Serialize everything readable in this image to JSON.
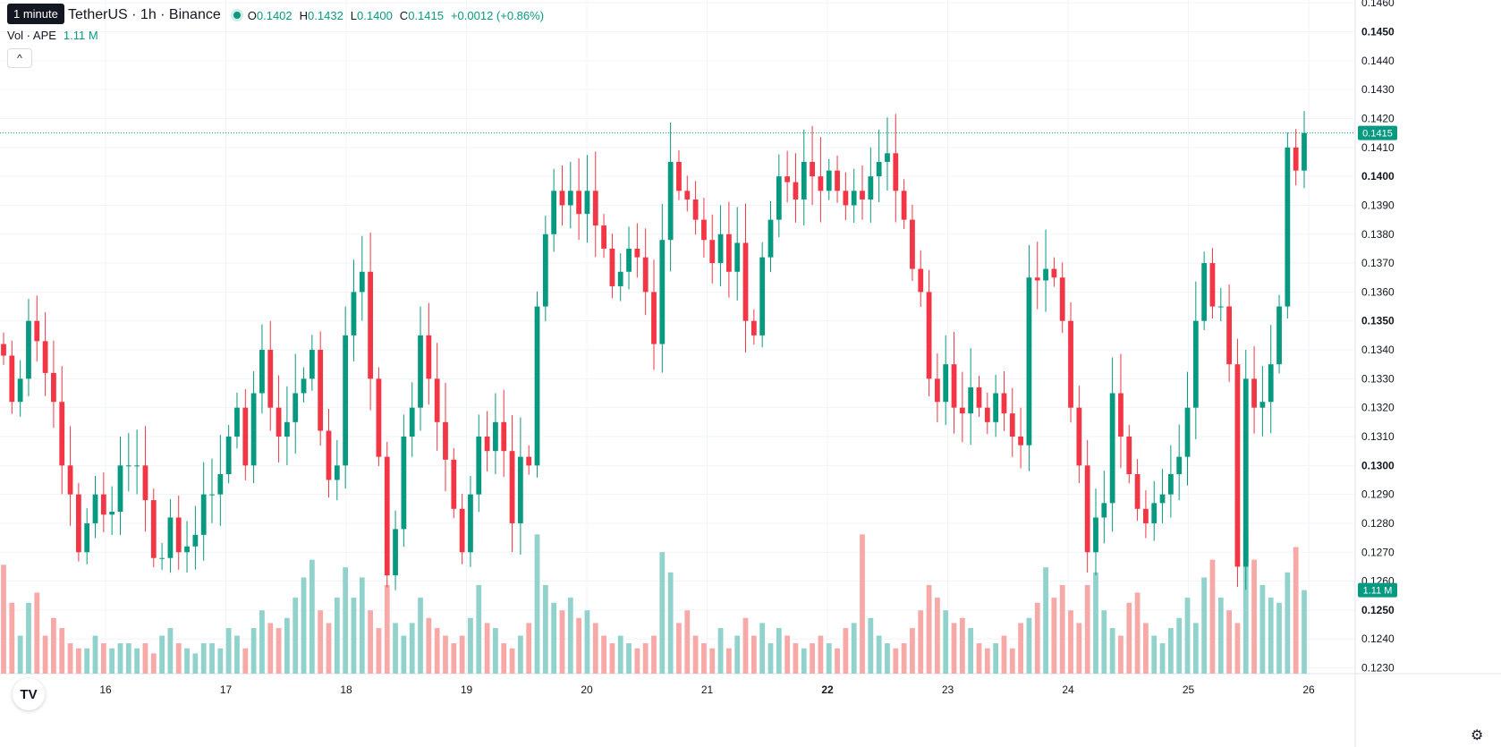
{
  "header": {
    "tooltip": "1 minute",
    "symbol_text": "TetherUS · 1h · Binance",
    "ohlc": {
      "o_label": "O",
      "o": "0.1402",
      "h_label": "H",
      "h": "0.1432",
      "l_label": "L",
      "l": "0.1400",
      "c_label": "C",
      "c": "0.1415"
    },
    "change": "+0.0012 (+0.86%)",
    "volume_label": "Vol · APE",
    "volume_value": "1.11 M",
    "collapse_glyph": "^"
  },
  "logo": "TV",
  "settings_icon": "gear-icon",
  "colors": {
    "up": "#089981",
    "down": "#f23645",
    "up_vol": "#92d2cc",
    "down_vol": "#f7a9a7",
    "grid": "#f0f3fa"
  },
  "chart_data": {
    "type": "candlestick",
    "x_ticks": [
      "16",
      "17",
      "18",
      "19",
      "20",
      "21",
      "22",
      "23",
      "24",
      "25",
      "26"
    ],
    "bold_x_ticks": [
      "22"
    ],
    "y_ticks": [
      "0.1230",
      "0.1240",
      "0.1250",
      "0.1260",
      "0.1270",
      "0.1280",
      "0.1290",
      "0.1300",
      "0.1310",
      "0.1320",
      "0.1330",
      "0.1340",
      "0.1350",
      "0.1360",
      "0.1370",
      "0.1380",
      "0.1390",
      "0.1400",
      "0.1410",
      "0.1420",
      "0.1430",
      "0.1440",
      "0.1450",
      "0.1460"
    ],
    "bold_y_ticks": [
      "0.1250",
      "0.1300",
      "0.1350",
      "0.1400",
      "0.1450"
    ],
    "ylim": [
      0.1228,
      0.1461
    ],
    "last_price_label": "0.1415",
    "last_price": 0.1415,
    "volume_label_badge": "1.11 M",
    "volume_last_fraction": 0.33,
    "close_path": [
      0.1338,
      0.1322,
      0.133,
      0.135,
      0.1343,
      0.1332,
      0.1322,
      0.13,
      0.129,
      0.127,
      0.128,
      0.129,
      0.1283,
      0.1284,
      0.13,
      0.13,
      0.13,
      0.1288,
      0.1268,
      0.1268,
      0.1282,
      0.127,
      0.1272,
      0.1276,
      0.129,
      0.129,
      0.1297,
      0.131,
      0.132,
      0.13,
      0.1325,
      0.134,
      0.132,
      0.131,
      0.1315,
      0.1325,
      0.133,
      0.134,
      0.1312,
      0.1295,
      0.13,
      0.1345,
      0.136,
      0.1367,
      0.133,
      0.1303,
      0.1262,
      0.1278,
      0.131,
      0.132,
      0.1345,
      0.133,
      0.1315,
      0.1302,
      0.1285,
      0.127,
      0.129,
      0.131,
      0.1305,
      0.1315,
      0.1305,
      0.128,
      0.1303,
      0.13,
      0.1355,
      0.138,
      0.1395,
      0.139,
      0.1395,
      0.1387,
      0.1395,
      0.1383,
      0.1375,
      0.1362,
      0.1367,
      0.1375,
      0.1372,
      0.136,
      0.1342,
      0.1378,
      0.1405,
      0.1395,
      0.1392,
      0.1385,
      0.1378,
      0.137,
      0.138,
      0.1367,
      0.1377,
      0.135,
      0.1345,
      0.1372,
      0.1385,
      0.14,
      0.1398,
      0.1392,
      0.1405,
      0.14,
      0.1395,
      0.1402,
      0.1395,
      0.139,
      0.1395,
      0.1392,
      0.14,
      0.1405,
      0.1408,
      0.1395,
      0.1385,
      0.1368,
      0.136,
      0.133,
      0.1322,
      0.1335,
      0.132,
      0.1318,
      0.1327,
      0.132,
      0.1315,
      0.1325,
      0.1318,
      0.131,
      0.1307,
      0.1365,
      0.1364,
      0.1368,
      0.1365,
      0.135,
      0.132,
      0.13,
      0.127,
      0.1282,
      0.1287,
      0.1325,
      0.131,
      0.1297,
      0.1285,
      0.128,
      0.1287,
      0.129,
      0.1297,
      0.1303,
      0.132,
      0.135,
      0.137,
      0.1355,
      0.1355,
      0.1335,
      0.1265,
      0.133,
      0.132,
      0.1322,
      0.1335,
      0.1355,
      0.141,
      0.1402,
      0.1415
    ],
    "volume_path": [
      0.43,
      0.28,
      0.15,
      0.28,
      0.32,
      0.15,
      0.22,
      0.18,
      0.12,
      0.1,
      0.1,
      0.15,
      0.12,
      0.1,
      0.12,
      0.12,
      0.1,
      0.12,
      0.08,
      0.15,
      0.18,
      0.12,
      0.1,
      0.08,
      0.12,
      0.12,
      0.1,
      0.18,
      0.15,
      0.1,
      0.18,
      0.25,
      0.2,
      0.18,
      0.22,
      0.3,
      0.38,
      0.45,
      0.25,
      0.2,
      0.3,
      0.42,
      0.3,
      0.38,
      0.25,
      0.18,
      0.35,
      0.2,
      0.15,
      0.2,
      0.3,
      0.22,
      0.18,
      0.15,
      0.12,
      0.15,
      0.22,
      0.35,
      0.2,
      0.18,
      0.12,
      0.1,
      0.15,
      0.2,
      0.55,
      0.35,
      0.28,
      0.25,
      0.3,
      0.22,
      0.25,
      0.2,
      0.15,
      0.12,
      0.15,
      0.12,
      0.1,
      0.12,
      0.15,
      0.48,
      0.4,
      0.2,
      0.25,
      0.15,
      0.12,
      0.1,
      0.18,
      0.1,
      0.15,
      0.22,
      0.15,
      0.2,
      0.12,
      0.18,
      0.15,
      0.12,
      0.1,
      0.12,
      0.15,
      0.12,
      0.1,
      0.18,
      0.2,
      0.55,
      0.22,
      0.15,
      0.12,
      0.1,
      0.12,
      0.18,
      0.25,
      0.35,
      0.3,
      0.25,
      0.2,
      0.22,
      0.18,
      0.12,
      0.1,
      0.12,
      0.15,
      0.1,
      0.2,
      0.22,
      0.28,
      0.42,
      0.3,
      0.35,
      0.25,
      0.2,
      0.35,
      0.4,
      0.25,
      0.18,
      0.15,
      0.28,
      0.32,
      0.2,
      0.15,
      0.12,
      0.18,
      0.22,
      0.3,
      0.2,
      0.38,
      0.45,
      0.3,
      0.25,
      0.2,
      0.55,
      0.45,
      0.35,
      0.3,
      0.28,
      0.4,
      0.5,
      0.33
    ]
  }
}
